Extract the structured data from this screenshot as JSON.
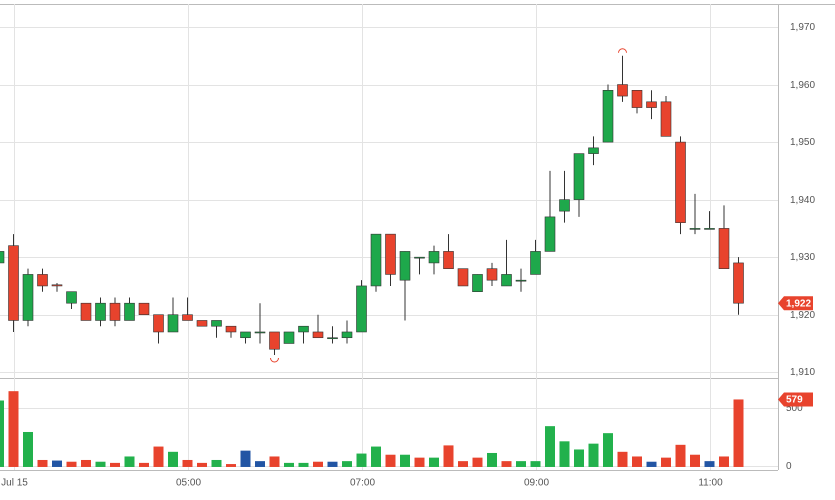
{
  "chart_data": {
    "type": "candlestick",
    "categories": [
      null,
      "Jul 15",
      null,
      null,
      null,
      null,
      null,
      null,
      null,
      null,
      null,
      null,
      null,
      "05:00",
      null,
      null,
      null,
      null,
      null,
      null,
      null,
      null,
      null,
      null,
      null,
      "07:00",
      null,
      null,
      null,
      null,
      null,
      null,
      null,
      null,
      null,
      null,
      null,
      "09:00",
      null,
      null,
      null,
      null,
      null,
      null,
      null,
      null,
      null,
      null,
      null,
      "11:00",
      null,
      null
    ],
    "open": [
      1929,
      1932,
      1919,
      1927,
      1925.2,
      1922,
      1922,
      1919,
      1922,
      1919,
      1922,
      1920,
      1917,
      1920,
      1919,
      1918,
      1918,
      1916,
      1917,
      1917,
      1915,
      1917,
      1917,
      1916,
      1916,
      1917,
      1925,
      1934,
      1926,
      1930,
      1929,
      1931,
      1928,
      1924,
      1928,
      1925,
      1926,
      1927,
      1931,
      1938,
      1940,
      1948,
      1950,
      1960,
      1959,
      1957,
      1957,
      1950,
      1935,
      1935,
      1935,
      1929
    ],
    "high": [
      1931,
      1934,
      1928,
      1928,
      1925.5,
      1924,
      1922,
      1923,
      1923,
      1923,
      1922,
      1920,
      1923,
      1923,
      1919,
      1919,
      1918,
      1917,
      1922,
      1917,
      1917,
      1918,
      1920,
      1918,
      1919,
      1926,
      1934,
      1934,
      1931,
      1930,
      1932,
      1934,
      1928,
      1927,
      1929,
      1933,
      1928,
      1933,
      1945,
      1945,
      1948,
      1951,
      1960,
      1965,
      1959,
      1959,
      1958,
      1951,
      1941,
      1938,
      1939,
      1930
    ],
    "low": [
      1929,
      1917,
      1918,
      1924,
      1924,
      1921,
      1919,
      1918,
      1918,
      1919,
      1920,
      1915,
      1917,
      1919,
      1918,
      1916,
      1916,
      1915,
      1915,
      1913,
      1915,
      1915,
      1916,
      1915,
      1915,
      1917,
      1924,
      1925,
      1919,
      1927,
      1927,
      1928,
      1925,
      1924,
      1925,
      1925,
      1924,
      1927,
      1931,
      1936,
      1937,
      1946,
      1950,
      1957,
      1955,
      1954,
      1951,
      1934,
      1934,
      1935,
      1928,
      1920
    ],
    "close": [
      1931,
      1919,
      1927,
      1925,
      1925,
      1924,
      1919,
      1922,
      1919,
      1922,
      1920,
      1917,
      1920,
      1919,
      1918,
      1919,
      1917,
      1917,
      1917,
      1914,
      1917,
      1918,
      1916,
      1916,
      1917,
      1925,
      1934,
      1927,
      1931,
      1930,
      1931,
      1928,
      1925,
      1927,
      1926,
      1927,
      1926,
      1931,
      1937,
      1940,
      1948,
      1949,
      1959,
      1958,
      1956,
      1956,
      1951,
      1936,
      1935,
      1935,
      1928,
      1922
    ],
    "up_color": "#1ea84b",
    "down_color": "#e8432d",
    "ylim": [
      1909,
      1974
    ],
    "yticks": [
      {
        "value": 1910,
        "label": "1,910"
      },
      {
        "value": 1920,
        "label": "1,920"
      },
      {
        "value": 1930,
        "label": "1,930"
      },
      {
        "value": 1940,
        "label": "1,940"
      },
      {
        "value": 1950,
        "label": "1,950"
      },
      {
        "value": 1960,
        "label": "1,960"
      },
      {
        "value": 1970,
        "label": "1,970"
      }
    ],
    "last_price": {
      "value": 1922,
      "label": "1,922"
    },
    "grid": true,
    "volume": {
      "values": [
        570,
        650,
        300,
        60,
        55,
        45,
        60,
        45,
        35,
        90,
        35,
        175,
        130,
        60,
        35,
        60,
        25,
        140,
        50,
        90,
        35,
        35,
        45,
        45,
        50,
        115,
        175,
        105,
        105,
        80,
        80,
        185,
        50,
        80,
        120,
        50,
        50,
        50,
        350,
        220,
        150,
        200,
        290,
        130,
        90,
        45,
        80,
        190,
        105,
        50,
        90,
        579
      ],
      "colors": [
        "#22b14c",
        "#e8432d",
        "#22b14c",
        "#e8432d",
        "#2255a4",
        "#e8432d",
        "#e8432d",
        "#22b14c",
        "#e8432d",
        "#22b14c",
        "#e8432d",
        "#e8432d",
        "#22b14c",
        "#e8432d",
        "#e8432d",
        "#22b14c",
        "#e8432d",
        "#2255a4",
        "#2255a4",
        "#e8432d",
        "#22b14c",
        "#22b14c",
        "#e8432d",
        "#2255a4",
        "#22b14c",
        "#22b14c",
        "#22b14c",
        "#e8432d",
        "#22b14c",
        "#e8432d",
        "#22b14c",
        "#e8432d",
        "#e8432d",
        "#e8432d",
        "#22b14c",
        "#e8432d",
        "#22b14c",
        "#22b14c",
        "#22b14c",
        "#22b14c",
        "#22b14c",
        "#22b14c",
        "#22b14c",
        "#e8432d",
        "#e8432d",
        "#2255a4",
        "#e8432d",
        "#e8432d",
        "#e8432d",
        "#2255a4",
        "#e8432d",
        "#e8432d"
      ],
      "ylim": [
        -26,
        763
      ],
      "yticks": [
        0,
        500
      ],
      "last": 579
    }
  }
}
